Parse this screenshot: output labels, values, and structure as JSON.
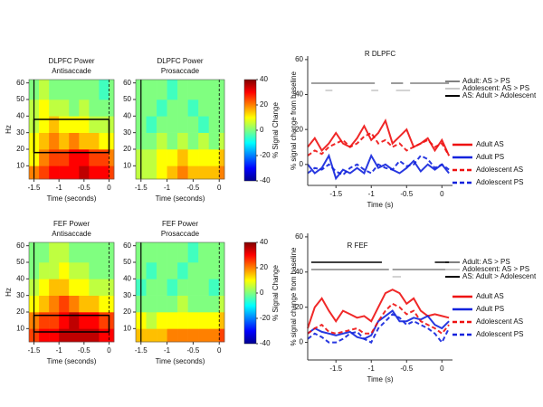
{
  "chart_data": [
    {
      "type": "heatmap",
      "title": "DLPFC Power",
      "subtitle": "Antisaccade",
      "x_label": "Time (seconds)",
      "y_label": "Hz",
      "xlim": [
        -1.6,
        0.1
      ],
      "ylim": [
        2,
        62
      ],
      "xticks": [
        -1.5,
        -1,
        -0.5,
        0
      ],
      "yticks": [
        10,
        20,
        30,
        40,
        50,
        60
      ],
      "xbins": [
        -1.6,
        -1.4,
        -1.2,
        -1.0,
        -0.8,
        -0.6,
        -0.4,
        -0.2,
        0,
        0.1
      ],
      "ybins": [
        2,
        10,
        20,
        30,
        40,
        50,
        62
      ],
      "clim": [
        -40,
        40
      ],
      "z": [
        [
          20,
          25,
          30,
          30,
          30,
          35,
          30,
          30,
          25
        ],
        [
          10,
          20,
          25,
          25,
          30,
          30,
          25,
          25,
          20
        ],
        [
          10,
          15,
          20,
          15,
          20,
          15,
          15,
          10,
          10
        ],
        [
          5,
          10,
          15,
          10,
          10,
          10,
          5,
          5,
          5
        ],
        [
          5,
          10,
          5,
          5,
          0,
          5,
          0,
          0,
          0
        ],
        [
          0,
          5,
          0,
          0,
          0,
          0,
          0,
          -5,
          0
        ]
      ],
      "roi": {
        "x": [
          -1.5,
          0
        ],
        "y": [
          18,
          38
        ]
      },
      "vlines": [
        {
          "value": -1.5,
          "style": "solid"
        },
        {
          "value": 0,
          "style": "dashed"
        }
      ]
    },
    {
      "type": "heatmap",
      "title": "DLPFC Power",
      "subtitle": "Prosaccade",
      "x_label": "Time (seconds)",
      "xlim": [
        -1.6,
        0.1
      ],
      "ylim": [
        2,
        62
      ],
      "xticks": [
        -1.5,
        -1,
        -0.5,
        0
      ],
      "yticks": [
        10,
        20,
        30,
        40,
        50,
        60
      ],
      "xbins": [
        -1.6,
        -1.4,
        -1.2,
        -1.0,
        -0.8,
        -0.6,
        -0.4,
        -0.2,
        0,
        0.1
      ],
      "ybins": [
        2,
        10,
        20,
        30,
        40,
        50,
        62
      ],
      "clim": [
        -40,
        40
      ],
      "z": [
        [
          5,
          5,
          10,
          15,
          20,
          15,
          15,
          15,
          20
        ],
        [
          5,
          5,
          10,
          10,
          15,
          10,
          10,
          10,
          15
        ],
        [
          0,
          0,
          5,
          0,
          5,
          0,
          5,
          0,
          5
        ],
        [
          0,
          -5,
          0,
          0,
          0,
          0,
          -5,
          0,
          0
        ],
        [
          0,
          0,
          -5,
          0,
          0,
          -5,
          0,
          0,
          0
        ],
        [
          0,
          0,
          0,
          -5,
          0,
          0,
          0,
          0,
          0
        ]
      ],
      "vlines": [
        {
          "value": -1.5,
          "style": "solid"
        },
        {
          "value": 0,
          "style": "dashed"
        }
      ]
    },
    {
      "type": "heatmap",
      "title": "FEF Power",
      "subtitle": "Antisaccade",
      "x_label": "Time (seconds)",
      "y_label": "Hz",
      "xlim": [
        -1.6,
        0.1
      ],
      "ylim": [
        2,
        62
      ],
      "xticks": [
        -1.5,
        -1,
        -0.5,
        0
      ],
      "yticks": [
        10,
        20,
        30,
        40,
        50,
        60
      ],
      "xbins": [
        -1.6,
        -1.4,
        -1.2,
        -1.0,
        -0.8,
        -0.6,
        -0.4,
        -0.2,
        0,
        0.1
      ],
      "ybins": [
        2,
        10,
        20,
        30,
        40,
        50,
        62
      ],
      "clim": [
        -40,
        40
      ],
      "z": [
        [
          25,
          30,
          30,
          35,
          35,
          35,
          35,
          30,
          30
        ],
        [
          20,
          25,
          25,
          30,
          35,
          30,
          30,
          25,
          25
        ],
        [
          10,
          15,
          20,
          25,
          20,
          15,
          15,
          10,
          10
        ],
        [
          5,
          10,
          15,
          15,
          10,
          10,
          5,
          5,
          5
        ],
        [
          0,
          5,
          5,
          10,
          5,
          5,
          0,
          0,
          0
        ],
        [
          0,
          0,
          5,
          5,
          0,
          0,
          0,
          0,
          0
        ]
      ],
      "roi": {
        "x": [
          -1.5,
          0
        ],
        "y": [
          8,
          18
        ]
      },
      "vlines": [
        {
          "value": -1.5,
          "style": "solid"
        },
        {
          "value": 0,
          "style": "dashed"
        }
      ]
    },
    {
      "type": "heatmap",
      "title": "FEF Power",
      "subtitle": "Prosaccade",
      "x_label": "Time (seconds)",
      "xlim": [
        -1.6,
        0.1
      ],
      "ylim": [
        2,
        62
      ],
      "xticks": [
        -1.5,
        -1,
        -0.5,
        0
      ],
      "yticks": [
        10,
        20,
        30,
        40,
        50,
        60
      ],
      "xbins": [
        -1.6,
        -1.4,
        -1.2,
        -1.0,
        -0.8,
        -0.6,
        -0.4,
        -0.2,
        0,
        0.1
      ],
      "ybins": [
        2,
        10,
        20,
        30,
        40,
        50,
        62
      ],
      "clim": [
        -40,
        40
      ],
      "z": [
        [
          15,
          15,
          15,
          20,
          20,
          20,
          20,
          20,
          25
        ],
        [
          10,
          5,
          10,
          10,
          10,
          10,
          10,
          10,
          15
        ],
        [
          0,
          0,
          0,
          0,
          5,
          0,
          0,
          0,
          5
        ],
        [
          -5,
          0,
          0,
          -5,
          0,
          0,
          0,
          -5,
          0
        ],
        [
          0,
          -5,
          0,
          0,
          -5,
          0,
          0,
          0,
          0
        ],
        [
          0,
          0,
          0,
          0,
          0,
          -5,
          0,
          0,
          0
        ]
      ],
      "vlines": [
        {
          "value": -1.5,
          "style": "solid"
        },
        {
          "value": 0,
          "style": "dashed"
        }
      ]
    },
    {
      "type": "colorbar",
      "label": "% Signal Change",
      "ylim": [
        -40,
        40
      ],
      "yticks": [
        40,
        20,
        0,
        -20,
        -40
      ]
    },
    {
      "type": "colorbar",
      "label": "% Signal Change",
      "ylim": [
        -40,
        40
      ],
      "yticks": [
        40,
        20,
        0,
        -20,
        -40
      ]
    },
    {
      "type": "line",
      "title": "R DLPFC",
      "x_label": "Time (s)",
      "y_label": "% signal change from baseline",
      "xlim": [
        -1.9,
        0.15
      ],
      "ylim": [
        -12,
        62
      ],
      "xticks": [
        -1.5,
        -1,
        -0.5,
        0
      ],
      "yticks": [
        0,
        20,
        40,
        60
      ],
      "x": [
        -1.9,
        -1.8,
        -1.7,
        -1.6,
        -1.5,
        -1.4,
        -1.3,
        -1.2,
        -1.1,
        -1.0,
        -0.9,
        -0.8,
        -0.7,
        -0.6,
        -0.5,
        -0.4,
        -0.3,
        -0.2,
        -0.1,
        0,
        0.1
      ],
      "series": [
        {
          "name": "Adult AS",
          "color": "#ee1111",
          "dashed": false,
          "values": [
            10,
            15,
            8,
            12,
            18,
            12,
            10,
            15,
            22,
            14,
            18,
            25,
            12,
            16,
            20,
            10,
            12,
            15,
            8,
            14,
            5
          ]
        },
        {
          "name": "Adult PS",
          "color": "#1122dd",
          "dashed": false,
          "values": [
            0,
            -5,
            -2,
            5,
            -8,
            -3,
            -5,
            -2,
            -5,
            5,
            -2,
            0,
            -3,
            -5,
            -2,
            2,
            -4,
            0,
            -3,
            0,
            -5
          ]
        },
        {
          "name": "Adolescent AS",
          "color": "#ee1111",
          "dashed": true,
          "values": [
            5,
            8,
            6,
            10,
            12,
            14,
            10,
            12,
            16,
            18,
            12,
            14,
            10,
            12,
            8,
            10,
            12,
            14,
            10,
            12,
            5
          ]
        },
        {
          "name": "Adolescent PS",
          "color": "#1122dd",
          "dashed": true,
          "values": [
            -5,
            -2,
            -3,
            0,
            -4,
            -6,
            -2,
            0,
            -3,
            -5,
            0,
            -2,
            -3,
            2,
            -1,
            0,
            5,
            3,
            -2,
            0,
            -3
          ]
        }
      ],
      "sig_bars": [
        {
          "name": "Adult: AS > PS",
          "color": "#808080",
          "segments": [
            [
              -1.85,
              -0.95
            ],
            [
              -0.72,
              -0.55
            ],
            [
              -0.45,
              0.1
            ]
          ]
        },
        {
          "name": "Adolescent: AS > PS",
          "color": "#c8c8c8",
          "segments": [
            [
              -1.65,
              -1.55
            ],
            [
              -1.0,
              -0.9
            ],
            [
              -0.65,
              -0.45
            ]
          ]
        },
        {
          "name": "AS: Adult > Adolescent",
          "color": "#000000",
          "segments": []
        }
      ]
    },
    {
      "type": "line",
      "title": "R FEF",
      "x_label": "Time (s)",
      "y_label": "% signal change from baseline",
      "xlim": [
        -1.9,
        0.15
      ],
      "ylim": [
        -10,
        62
      ],
      "xticks": [
        -1.5,
        -1,
        -0.5,
        0
      ],
      "yticks": [
        0,
        20,
        40,
        60
      ],
      "x": [
        -1.9,
        -1.8,
        -1.7,
        -1.6,
        -1.5,
        -1.4,
        -1.3,
        -1.2,
        -1.1,
        -1.0,
        -0.9,
        -0.8,
        -0.7,
        -0.6,
        -0.5,
        -0.4,
        -0.3,
        -0.2,
        -0.1,
        0,
        0.1
      ],
      "series": [
        {
          "name": "Adult AS",
          "color": "#ee1111",
          "dashed": false,
          "values": [
            8,
            20,
            25,
            18,
            12,
            18,
            16,
            14,
            15,
            12,
            20,
            28,
            30,
            28,
            22,
            25,
            18,
            15,
            16,
            15,
            14
          ]
        },
        {
          "name": "Adult PS",
          "color": "#1122dd",
          "dashed": false,
          "values": [
            5,
            8,
            6,
            5,
            4,
            5,
            6,
            3,
            2,
            4,
            12,
            15,
            18,
            12,
            12,
            14,
            13,
            15,
            10,
            8,
            12
          ]
        },
        {
          "name": "Adolescent AS",
          "color": "#ee1111",
          "dashed": true,
          "values": [
            5,
            8,
            10,
            6,
            5,
            6,
            7,
            8,
            5,
            5,
            12,
            18,
            22,
            20,
            16,
            18,
            12,
            10,
            8,
            5,
            10
          ]
        },
        {
          "name": "Adolescent PS",
          "color": "#1122dd",
          "dashed": true,
          "values": [
            2,
            5,
            3,
            0,
            0,
            2,
            5,
            6,
            2,
            0,
            8,
            12,
            16,
            14,
            10,
            12,
            10,
            8,
            5,
            0,
            8
          ]
        }
      ],
      "sig_bars": [
        {
          "name": "Adult: AS > PS",
          "color": "#808080",
          "segments": [
            [
              -1.85,
              -0.75
            ],
            [
              -0.7,
              0.1
            ]
          ]
        },
        {
          "name": "Adolescent: AS > PS",
          "color": "#c8c8c8",
          "segments": [
            [
              -0.7,
              -0.58
            ]
          ]
        },
        {
          "name": "AS: Adult > Adolescent",
          "color": "#000000",
          "segments": [
            [
              -1.85,
              -0.85
            ],
            [
              -0.1,
              0.1
            ]
          ]
        }
      ]
    }
  ]
}
